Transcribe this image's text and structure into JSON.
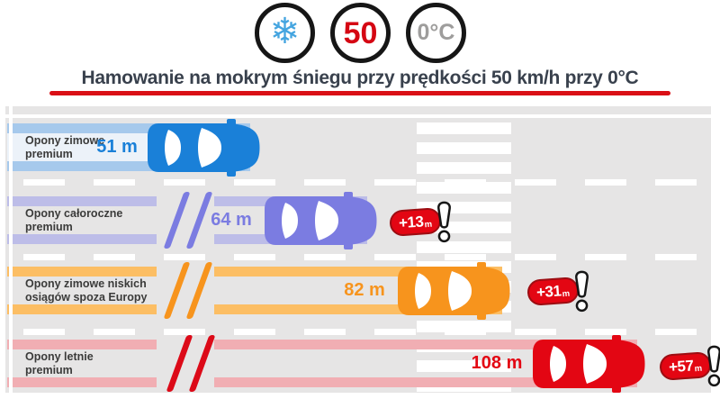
{
  "header": {
    "icons": {
      "snowflake": {
        "glyph": "❄",
        "color": "#45a5e0"
      },
      "speed": {
        "text": "50",
        "color": "#d50713"
      },
      "temperature": {
        "text": "0°C",
        "color": "#9e9d9c"
      }
    },
    "title": "Hamowanie na mokrym śniegu przy prędkości 50 km/h przy 0°C",
    "underline_color": "#da1016"
  },
  "road": {
    "surface_color": "#e6e5e5",
    "marking_color": "#ffffff"
  },
  "badge_style": {
    "fill": "#e30613",
    "border": "#9c0d12",
    "text_color": "#ffffff"
  },
  "lanes": [
    {
      "label_line1": "Opony zimowe",
      "label_line2": "premium",
      "distance_label": "51 m",
      "color": "#1a80d8",
      "strip_color": "#a6c9ec",
      "bar_fill": "#ecf2f9",
      "slash_color": null,
      "badge": null
    },
    {
      "label_line1": "Opony całoroczne",
      "label_line2": "premium",
      "distance_label": "64 m",
      "color": "#7b7ce1",
      "strip_color": "#bdbde8",
      "bar_fill": null,
      "slash_color": "#7b7ce1",
      "badge": {
        "text": "+13",
        "sub": "m"
      }
    },
    {
      "label_line1": "Opony zimowe niskich",
      "label_line2": "osiągów spoza Europy",
      "distance_label": "82 m",
      "color": "#f7941d",
      "strip_color": "#fcbe64",
      "bar_fill": null,
      "slash_color": "#f7941d",
      "badge": {
        "text": "+31",
        "sub": "m"
      }
    },
    {
      "label_line1": "Opony letnie",
      "label_line2": "premium",
      "distance_label": "108 m",
      "color": "#e30613",
      "strip_color": "#f1aeb3",
      "bar_fill": null,
      "slash_color": "#dc0a18",
      "badge": {
        "text": "+57",
        "sub": "m"
      }
    }
  ],
  "chart_data": {
    "type": "bar",
    "orientation": "horizontal",
    "title": "Hamowanie na mokrym śniegu przy prędkości 50 km/h przy 0°C",
    "categories": [
      "Opony zimowe premium",
      "Opony całoroczne premium",
      "Opony zimowe niskich osiągów spoza Europy",
      "Opony letnie premium"
    ],
    "values": [
      51,
      64,
      82,
      108
    ],
    "unit": "m",
    "value_labels": [
      "51 m",
      "64 m",
      "82 m",
      "108 m"
    ],
    "delta_labels": [
      null,
      "+13 m",
      "+31 m",
      "+57 m"
    ],
    "series_colors": [
      "#1a80d8",
      "#7b7ce1",
      "#f7941d",
      "#e30613"
    ],
    "conditions": {
      "surface_icon": "snowflake",
      "speed": "50",
      "temperature": "0°C"
    }
  }
}
